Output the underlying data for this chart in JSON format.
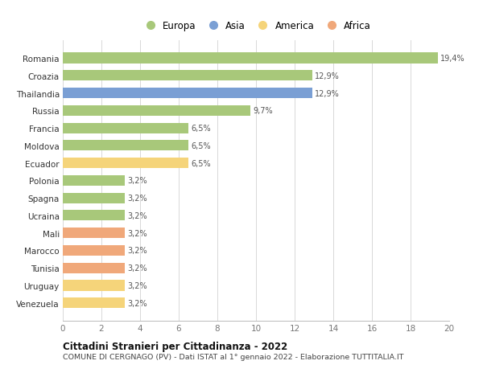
{
  "categories": [
    "Venezuela",
    "Uruguay",
    "Tunisia",
    "Marocco",
    "Mali",
    "Ucraina",
    "Spagna",
    "Polonia",
    "Ecuador",
    "Moldova",
    "Francia",
    "Russia",
    "Thailandia",
    "Croazia",
    "Romania"
  ],
  "values": [
    3.2,
    3.2,
    3.2,
    3.2,
    3.2,
    3.2,
    3.2,
    3.2,
    6.5,
    6.5,
    6.5,
    9.7,
    12.9,
    12.9,
    19.4
  ],
  "colors": [
    "#f5d47a",
    "#f5d47a",
    "#f0a87a",
    "#f0a87a",
    "#f0a87a",
    "#a8c87a",
    "#a8c87a",
    "#a8c87a",
    "#f5d47a",
    "#a8c87a",
    "#a8c87a",
    "#a8c87a",
    "#7a9fd4",
    "#a8c87a",
    "#a8c87a"
  ],
  "labels": [
    "3,2%",
    "3,2%",
    "3,2%",
    "3,2%",
    "3,2%",
    "3,2%",
    "3,2%",
    "3,2%",
    "6,5%",
    "6,5%",
    "6,5%",
    "9,7%",
    "12,9%",
    "12,9%",
    "19,4%"
  ],
  "legend": [
    {
      "label": "Europa",
      "color": "#a8c87a"
    },
    {
      "label": "Asia",
      "color": "#7a9fd4"
    },
    {
      "label": "America",
      "color": "#f5d47a"
    },
    {
      "label": "Africa",
      "color": "#f0a87a"
    }
  ],
  "title1": "Cittadini Stranieri per Cittadinanza - 2022",
  "title2": "COMUNE DI CERGNAGO (PV) - Dati ISTAT al 1° gennaio 2022 - Elaborazione TUTTITALIA.IT",
  "xlim": [
    0,
    20
  ],
  "xticks": [
    0,
    2,
    4,
    6,
    8,
    10,
    12,
    14,
    16,
    18,
    20
  ],
  "background_color": "#ffffff",
  "grid_color": "#d8d8d8"
}
